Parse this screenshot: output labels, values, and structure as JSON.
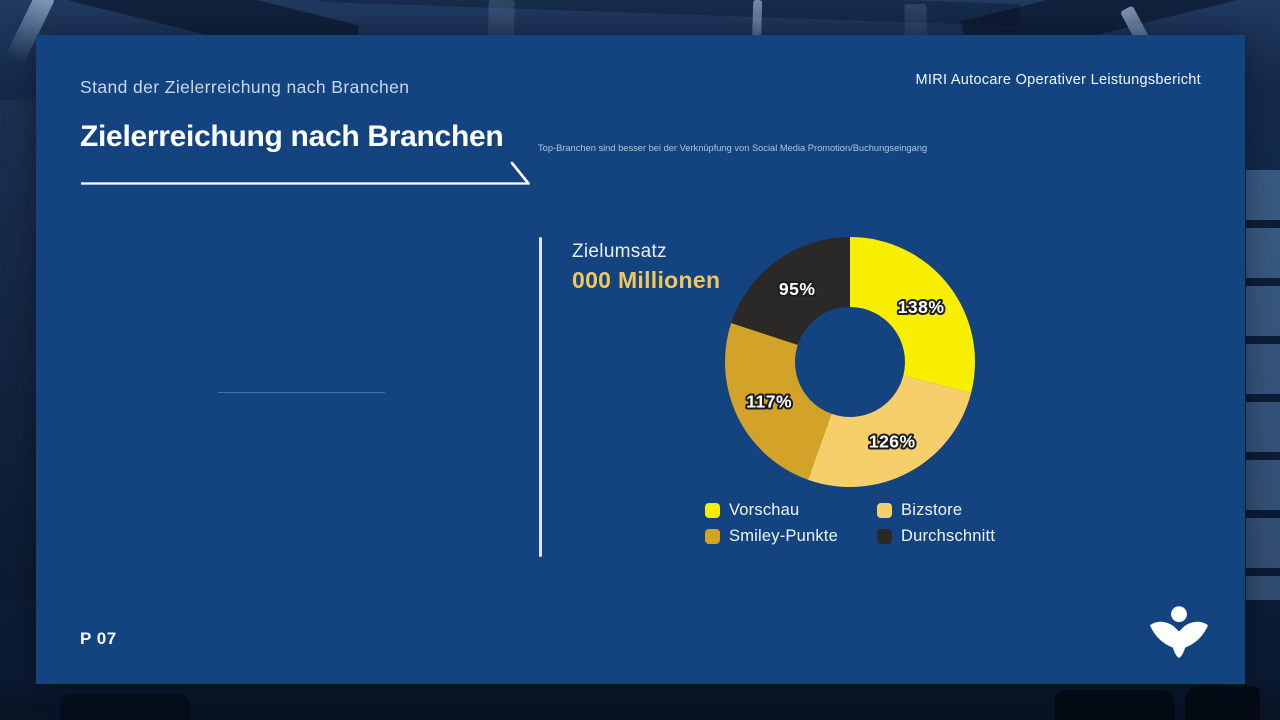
{
  "slide": {
    "eyebrow": "Stand der Zielerreichung nach Branchen",
    "report_label": "MIRI Autocare Operativer Leistungsbericht",
    "title": "Zielerreichung nach Branchen",
    "note": "Top-Branchen sind besser bei der Verknüpfung von Social Media Promotion/Buchungseingang",
    "page_number": "P 07"
  },
  "kpi": {
    "label": "Zielumsatz",
    "value": "000 Millionen"
  },
  "chart_data": {
    "type": "pie",
    "variant": "donut",
    "title": "Zielumsatz 000 Millionen",
    "categories": [
      "Vorschau",
      "Bizstore",
      "Smiley-Punkte",
      "Durchschnitt"
    ],
    "values": [
      138,
      126,
      117,
      95
    ],
    "value_labels": [
      "138%",
      "126%",
      "117%",
      "95%"
    ],
    "unit": "%",
    "colors": [
      "#f8ee00",
      "#f6cf6b",
      "#d2a229",
      "#2a2927"
    ],
    "start_angle_deg": 0,
    "direction": "clockwise",
    "inner_radius_ratio": 0.44,
    "legend_position": "bottom"
  },
  "theme": {
    "slide_bg": "#144480",
    "accent_gold": "#efc75e",
    "divider": "#e9eef5",
    "text_light": "#ffffff",
    "text_muted": "#c9d7ec"
  },
  "logo": {
    "name": "raised-arms-figure"
  }
}
